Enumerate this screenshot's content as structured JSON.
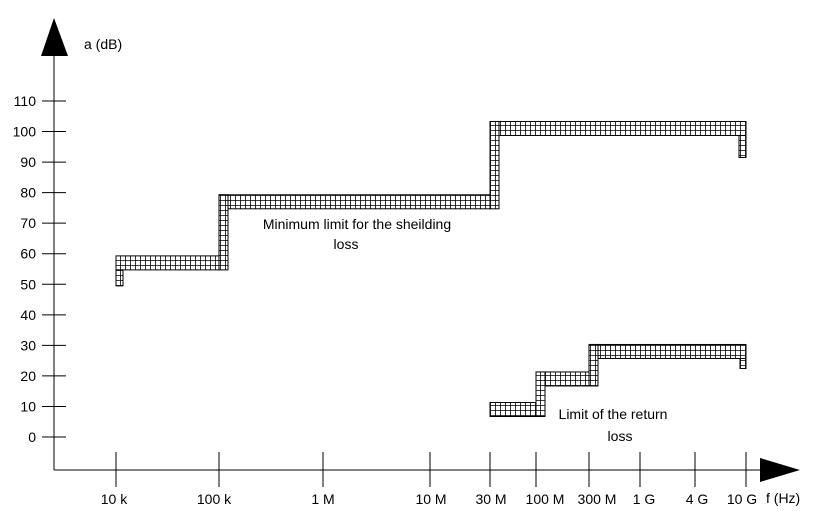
{
  "chart_data": {
    "type": "line",
    "ylabel": "a (dB)",
    "xlabel": "f (Hz)",
    "y_ticks": [
      "110",
      "100",
      "90",
      "80",
      "70",
      "60",
      "50",
      "40",
      "30",
      "20",
      "10",
      "0"
    ],
    "x_ticks": [
      "10 k",
      "100 k",
      "1 M",
      "10 M",
      "30 M",
      "100 M",
      "300 M",
      "1 G",
      "4 G",
      "10 G"
    ],
    "ylim": [
      0,
      110
    ],
    "xscale": "log",
    "grid": false,
    "series": [
      {
        "name": "Minimum limit for the sheilding loss",
        "steps": [
          {
            "from": "10 k",
            "to": "100 k",
            "value": 57
          },
          {
            "from": "100 k",
            "to": "30 M",
            "value": 77
          },
          {
            "from": "30 M",
            "to": "10 G",
            "value": 101
          }
        ]
      },
      {
        "name": "Limit of the return loss",
        "steps": [
          {
            "from": "30 M",
            "to": "100 M",
            "value": 9
          },
          {
            "from": "100 M",
            "to": "300 M",
            "value": 19
          },
          {
            "from": "300 M",
            "to": "10 G",
            "value": 28
          }
        ]
      }
    ],
    "annotations": [
      [
        "Minimum limit for the sheilding",
        "loss"
      ],
      [
        "Limit of the return",
        "loss"
      ]
    ]
  }
}
